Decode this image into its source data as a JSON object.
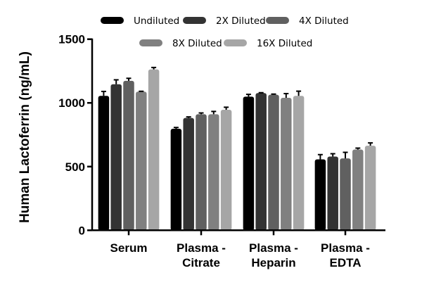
{
  "chart_data": {
    "type": "bar",
    "title": "",
    "xlabel": "",
    "ylabel": "Human Lactoferrin (ng/mL)",
    "ylim": [
      0,
      1500
    ],
    "yticks": [
      0,
      500,
      1000,
      1500
    ],
    "grid": false,
    "legend_placement": "top",
    "categories": [
      [
        "Serum"
      ],
      [
        "Plasma -",
        "Citrate"
      ],
      [
        "Plasma -",
        "Heparin"
      ],
      [
        "Plasma -",
        "EDTA"
      ]
    ],
    "series": [
      {
        "name": "Undiluted",
        "color": "#000000",
        "values": [
          1055,
          797,
          1049,
          557
        ],
        "errors": [
          35,
          10,
          18,
          37
        ]
      },
      {
        "name": "2X Diluted",
        "color": "#333333",
        "values": [
          1146,
          882,
          1077,
          579
        ],
        "errors": [
          35,
          8,
          3,
          22
        ]
      },
      {
        "name": "4X Diluted",
        "color": "#606060",
        "values": [
          1173,
          911,
          1064,
          564
        ],
        "errors": [
          20,
          10,
          5,
          48
        ]
      },
      {
        "name": "8X Diluted",
        "color": "#808080",
        "values": [
          1088,
          911,
          1040,
          634
        ],
        "errors": [
          3,
          22,
          33,
          11
        ]
      },
      {
        "name": "16X Diluted",
        "color": "#a6a6a6",
        "values": [
          1263,
          946,
          1055,
          664
        ],
        "errors": [
          15,
          20,
          37,
          22
        ]
      }
    ]
  }
}
